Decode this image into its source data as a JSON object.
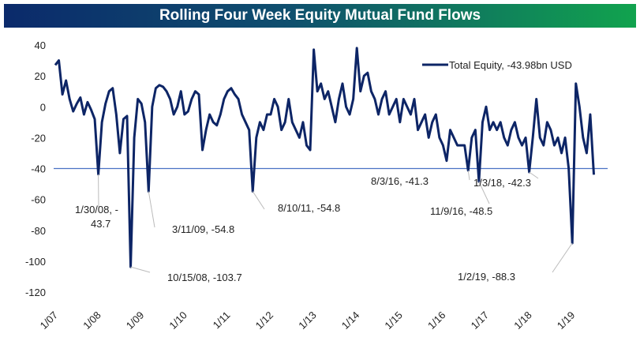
{
  "chart_data": {
    "type": "line",
    "title": "Rolling Four Week Equity Mutual Fund Flows",
    "ylim": [
      -120,
      40
    ],
    "yticks": [
      40,
      20,
      0,
      -20,
      -40,
      -60,
      -80,
      -100,
      -120
    ],
    "xticks": [
      "1/07",
      "1/08",
      "1/09",
      "1/10",
      "1/11",
      "1/12",
      "1/13",
      "1/14",
      "1/15",
      "1/16",
      "1/17",
      "1/18",
      "1/19"
    ],
    "xlim": [
      "2007-01",
      "2019-09"
    ],
    "grid": false,
    "legend_position": "top-right",
    "reference_line": -40,
    "colors": {
      "series": "#0d2566",
      "reference": "#4a72c4"
    },
    "series": [
      {
        "name": "Total Equity, -43.98bn USD",
        "x": [
          "2007-01",
          "2007-02",
          "2007-03",
          "2007-04",
          "2007-05",
          "2007-06",
          "2007-07",
          "2007-08",
          "2007-09",
          "2007-10",
          "2007-11",
          "2007-12",
          "2008-01",
          "2008-02",
          "2008-03",
          "2008-04",
          "2008-05",
          "2008-06",
          "2008-07",
          "2008-08",
          "2008-09",
          "2008-10",
          "2008-11",
          "2008-12",
          "2009-01",
          "2009-02",
          "2009-03",
          "2009-04",
          "2009-05",
          "2009-06",
          "2009-07",
          "2009-08",
          "2009-09",
          "2009-10",
          "2009-11",
          "2009-12",
          "2010-01",
          "2010-02",
          "2010-03",
          "2010-04",
          "2010-05",
          "2010-06",
          "2010-07",
          "2010-08",
          "2010-09",
          "2010-10",
          "2010-11",
          "2010-12",
          "2011-01",
          "2011-02",
          "2011-03",
          "2011-04",
          "2011-05",
          "2011-06",
          "2011-07",
          "2011-08",
          "2011-09",
          "2011-10",
          "2011-11",
          "2011-12",
          "2012-01",
          "2012-02",
          "2012-03",
          "2012-04",
          "2012-05",
          "2012-06",
          "2012-07",
          "2012-08",
          "2012-09",
          "2012-10",
          "2012-11",
          "2012-12",
          "2013-01",
          "2013-02",
          "2013-03",
          "2013-04",
          "2013-05",
          "2013-06",
          "2013-07",
          "2013-08",
          "2013-09",
          "2013-10",
          "2013-11",
          "2013-12",
          "2014-01",
          "2014-02",
          "2014-03",
          "2014-04",
          "2014-05",
          "2014-06",
          "2014-07",
          "2014-08",
          "2014-09",
          "2014-10",
          "2014-11",
          "2014-12",
          "2015-01",
          "2015-02",
          "2015-03",
          "2015-04",
          "2015-05",
          "2015-06",
          "2015-07",
          "2015-08",
          "2015-09",
          "2015-10",
          "2015-11",
          "2015-12",
          "2016-01",
          "2016-02",
          "2016-03",
          "2016-04",
          "2016-05",
          "2016-06",
          "2016-07",
          "2016-08",
          "2016-09",
          "2016-10",
          "2016-11",
          "2016-12",
          "2017-01",
          "2017-02",
          "2017-03",
          "2017-04",
          "2017-05",
          "2017-06",
          "2017-07",
          "2017-08",
          "2017-09",
          "2017-10",
          "2017-11",
          "2017-12",
          "2018-01",
          "2018-02",
          "2018-03",
          "2018-04",
          "2018-05",
          "2018-06",
          "2018-07",
          "2018-08",
          "2018-09",
          "2018-10",
          "2018-11",
          "2018-12",
          "2019-01",
          "2019-02",
          "2019-03",
          "2019-04",
          "2019-05",
          "2019-06",
          "2019-07"
        ],
        "values": [
          27,
          30,
          8,
          17,
          5,
          -3,
          2,
          6,
          -5,
          3,
          -2,
          -8,
          -43.7,
          -10,
          2,
          10,
          12,
          -5,
          -30,
          -8,
          -6,
          -103.7,
          -20,
          5,
          2,
          -10,
          -54.8,
          0,
          12,
          14,
          13,
          10,
          5,
          -5,
          0,
          10,
          -5,
          -3,
          5,
          10,
          8,
          -28,
          -15,
          -5,
          -10,
          -12,
          -5,
          5,
          10,
          12,
          8,
          5,
          -5,
          -10,
          -15,
          -54.8,
          -20,
          -10,
          -15,
          -5,
          -5,
          5,
          0,
          -15,
          -10,
          5,
          -10,
          -15,
          -20,
          -10,
          -25,
          -28,
          37,
          10,
          15,
          5,
          10,
          0,
          -10,
          5,
          15,
          0,
          -5,
          5,
          38,
          10,
          20,
          22,
          10,
          5,
          -5,
          5,
          10,
          -5,
          0,
          5,
          -10,
          5,
          0,
          -5,
          5,
          -15,
          -10,
          -5,
          -20,
          -10,
          -5,
          -20,
          -25,
          -35,
          -15,
          -20,
          -25,
          -25,
          -25,
          -41.3,
          -20,
          -15,
          -48.5,
          -10,
          0,
          -15,
          -10,
          -15,
          -10,
          -20,
          -25,
          -15,
          -10,
          -20,
          -25,
          -20,
          -42.3,
          -20,
          5,
          -20,
          -25,
          -10,
          -15,
          -25,
          -20,
          -30,
          -20,
          -40,
          -88.3,
          15,
          0,
          -20,
          -30,
          -5,
          -43.98
        ]
      }
    ],
    "annotations": [
      {
        "x": "2008-01",
        "y": -43.7,
        "label": "1/30/08, -",
        "label2": "43.7"
      },
      {
        "x": "2008-10",
        "y": -103.7,
        "label": "10/15/08, -103.7"
      },
      {
        "x": "2009-03",
        "y": -54.8,
        "label": "3/11/09, -54.8"
      },
      {
        "x": "2011-08",
        "y": -54.8,
        "label": "8/10/11, -54.8"
      },
      {
        "x": "2016-08",
        "y": -41.3,
        "label": "8/3/16, -41.3"
      },
      {
        "x": "2016-11",
        "y": -48.5,
        "label": "11/9/16, -48.5"
      },
      {
        "x": "2018-01",
        "y": -42.3,
        "label": "1/3/18, -42.3"
      },
      {
        "x": "2019-01",
        "y": -88.3,
        "label": "1/2/19, -88.3"
      }
    ]
  }
}
